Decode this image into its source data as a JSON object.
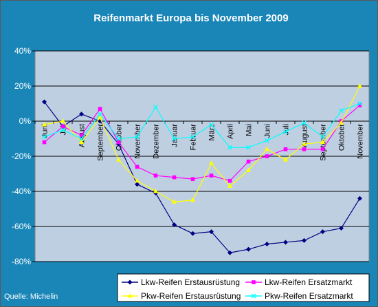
{
  "colors": {
    "chart_background": "#1a86b8",
    "plot_background": "#bfcfe2",
    "lkw_erstausruestung": "#000080",
    "lkw_ersatzmarkt": "#ff00ff",
    "pkw_erstausruestung": "#ffff00",
    "pkw_ersatzmarkt": "#00ffff"
  },
  "source_text": "Quelle: Michelin",
  "chart_data": {
    "type": "line",
    "title": "Reifenmarkt Europa bis November 2009",
    "xlabel": "",
    "ylabel": "",
    "y_unit": "%",
    "ylim": [
      -80,
      40
    ],
    "yticks": [
      -80,
      -60,
      -40,
      -20,
      0,
      20,
      40
    ],
    "grid": "horizontal",
    "legend_position": "bottom-right",
    "categories": [
      "Juni",
      "Juli",
      "August",
      "September",
      "Oktober",
      "November",
      "Dezember",
      "Januar",
      "Februar",
      "März",
      "April",
      "Mai",
      "Juni",
      "Juli",
      "August",
      "September",
      "Oktober",
      "November"
    ],
    "series": [
      {
        "name": "Lkw-Reifen Erstausrüstung",
        "color": "#000080",
        "marker": "diamond",
        "values": [
          11,
          -3,
          4,
          0,
          -13,
          -36,
          -41,
          -59,
          -64,
          -63,
          -75,
          -73,
          -70,
          -69,
          -68,
          -63,
          -61,
          -44
        ]
      },
      {
        "name": "Lkw-Reifen Ersatzmarkt",
        "color": "#ff00ff",
        "marker": "square",
        "values": [
          -12,
          -3,
          -8,
          7,
          -12,
          -26,
          -31,
          -32,
          -33,
          -31,
          -34,
          -23,
          -20,
          -16,
          -16,
          -16,
          0,
          9
        ]
      },
      {
        "name": "Pkw-Reifen Erstausrüstung",
        "color": "#ffff00",
        "marker": "triangle",
        "values": [
          -2,
          0,
          -12,
          2,
          -22,
          -34,
          -40,
          -46,
          -45,
          -24,
          -37,
          -28,
          -16,
          -22,
          -13,
          -12,
          -1,
          20
        ]
      },
      {
        "name": "Pkw-Reifen Ersatzmarkt",
        "color": "#00ffff",
        "marker": "x",
        "values": [
          -9,
          -5,
          -10,
          4,
          -10,
          -9,
          8,
          -10,
          -9,
          -2,
          -15,
          -15,
          -11,
          -6,
          -1,
          -9,
          6,
          10
        ]
      }
    ]
  }
}
